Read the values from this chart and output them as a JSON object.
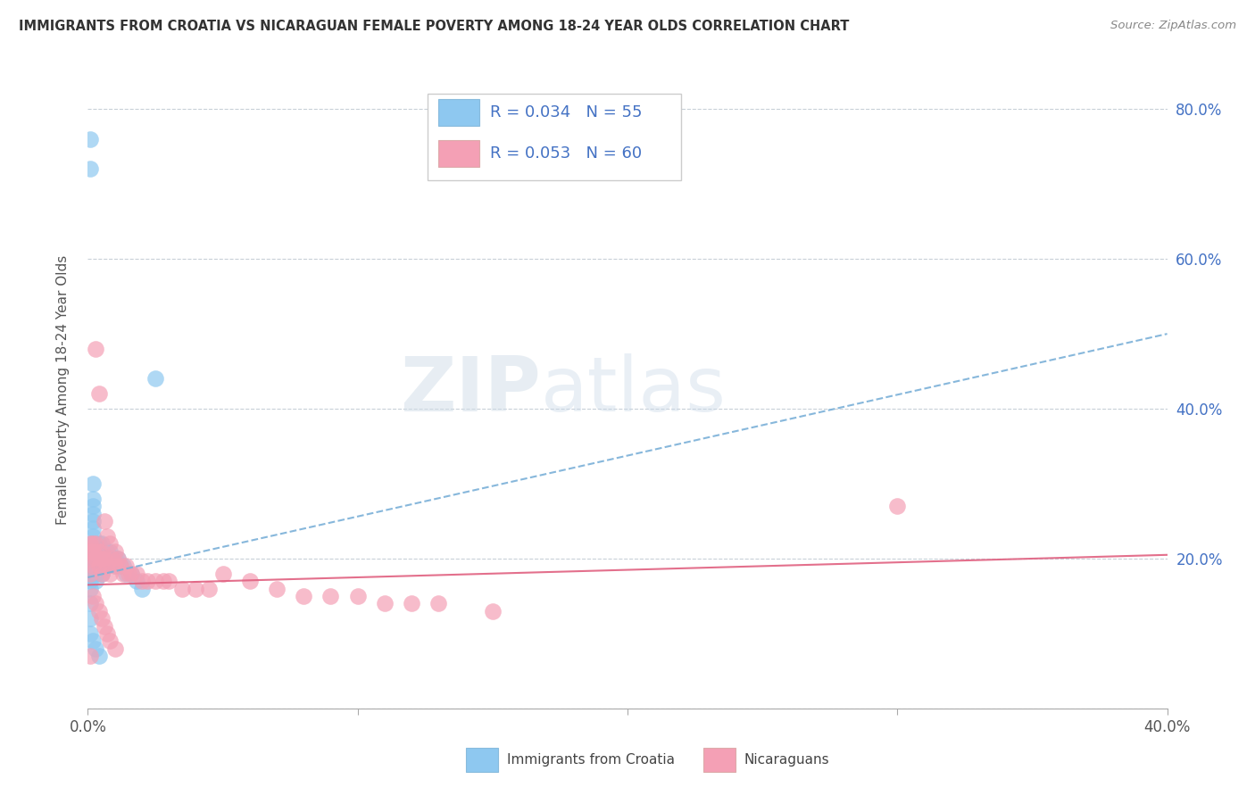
{
  "title": "IMMIGRANTS FROM CROATIA VS NICARAGUAN FEMALE POVERTY AMONG 18-24 YEAR OLDS CORRELATION CHART",
  "source": "Source: ZipAtlas.com",
  "ylabel": "Female Poverty Among 18-24 Year Olds",
  "xlim": [
    0.0,
    0.4
  ],
  "ylim": [
    0.0,
    0.85
  ],
  "x_ticks": [
    0.0,
    0.1,
    0.2,
    0.3,
    0.4
  ],
  "x_tick_labels": [
    "0.0%",
    "",
    "",
    "",
    "40.0%"
  ],
  "y_ticks": [
    0.0,
    0.2,
    0.4,
    0.6,
    0.8
  ],
  "y_tick_labels_right": [
    "",
    "20.0%",
    "40.0%",
    "60.0%",
    "80.0%"
  ],
  "color_croatia": "#8ec8f0",
  "color_nicaragua": "#f4a0b5",
  "color_line_croatia": "#7ab0d8",
  "color_line_nicaragua": "#e06080",
  "watermark": "ZIPatlas",
  "background_color": "#ffffff",
  "grid_color": "#c8d0d8",
  "croatia_line_x0": 0.0,
  "croatia_line_y0": 0.175,
  "croatia_line_x1": 0.4,
  "croatia_line_y1": 0.5,
  "nicaragua_line_x0": 0.0,
  "nicaragua_line_y0": 0.165,
  "nicaragua_line_x1": 0.4,
  "nicaragua_line_y1": 0.205,
  "croatia_x": [
    0.001,
    0.001,
    0.001,
    0.001,
    0.001,
    0.001,
    0.001,
    0.001,
    0.001,
    0.001,
    0.002,
    0.002,
    0.002,
    0.002,
    0.002,
    0.002,
    0.002,
    0.002,
    0.002,
    0.002,
    0.003,
    0.003,
    0.003,
    0.003,
    0.003,
    0.003,
    0.004,
    0.004,
    0.004,
    0.004,
    0.005,
    0.005,
    0.005,
    0.005,
    0.006,
    0.006,
    0.007,
    0.007,
    0.008,
    0.009,
    0.01,
    0.01,
    0.011,
    0.012,
    0.013,
    0.014,
    0.016,
    0.018,
    0.02,
    0.025,
    0.001,
    0.001,
    0.002,
    0.003,
    0.004
  ],
  "croatia_y": [
    0.76,
    0.72,
    0.22,
    0.21,
    0.2,
    0.19,
    0.18,
    0.17,
    0.16,
    0.14,
    0.3,
    0.28,
    0.27,
    0.26,
    0.25,
    0.24,
    0.23,
    0.22,
    0.21,
    0.2,
    0.22,
    0.21,
    0.2,
    0.19,
    0.18,
    0.17,
    0.22,
    0.21,
    0.2,
    0.19,
    0.22,
    0.21,
    0.2,
    0.18,
    0.21,
    0.19,
    0.21,
    0.2,
    0.21,
    0.2,
    0.2,
    0.19,
    0.2,
    0.19,
    0.19,
    0.18,
    0.18,
    0.17,
    0.16,
    0.44,
    0.12,
    0.1,
    0.09,
    0.08,
    0.07
  ],
  "nicaragua_x": [
    0.001,
    0.001,
    0.001,
    0.001,
    0.002,
    0.002,
    0.002,
    0.003,
    0.003,
    0.003,
    0.004,
    0.004,
    0.004,
    0.005,
    0.005,
    0.005,
    0.006,
    0.006,
    0.007,
    0.007,
    0.008,
    0.008,
    0.009,
    0.01,
    0.01,
    0.011,
    0.012,
    0.013,
    0.014,
    0.015,
    0.016,
    0.018,
    0.02,
    0.022,
    0.025,
    0.028,
    0.03,
    0.035,
    0.04,
    0.045,
    0.05,
    0.06,
    0.07,
    0.08,
    0.09,
    0.1,
    0.11,
    0.12,
    0.13,
    0.15,
    0.002,
    0.003,
    0.004,
    0.005,
    0.006,
    0.007,
    0.008,
    0.01,
    0.3,
    0.001
  ],
  "nicaragua_y": [
    0.22,
    0.21,
    0.2,
    0.18,
    0.22,
    0.21,
    0.19,
    0.48,
    0.22,
    0.2,
    0.42,
    0.21,
    0.19,
    0.21,
    0.2,
    0.18,
    0.25,
    0.2,
    0.23,
    0.19,
    0.22,
    0.18,
    0.2,
    0.21,
    0.19,
    0.2,
    0.19,
    0.18,
    0.19,
    0.18,
    0.18,
    0.18,
    0.17,
    0.17,
    0.17,
    0.17,
    0.17,
    0.16,
    0.16,
    0.16,
    0.18,
    0.17,
    0.16,
    0.15,
    0.15,
    0.15,
    0.14,
    0.14,
    0.14,
    0.13,
    0.15,
    0.14,
    0.13,
    0.12,
    0.11,
    0.1,
    0.09,
    0.08,
    0.27,
    0.07
  ]
}
